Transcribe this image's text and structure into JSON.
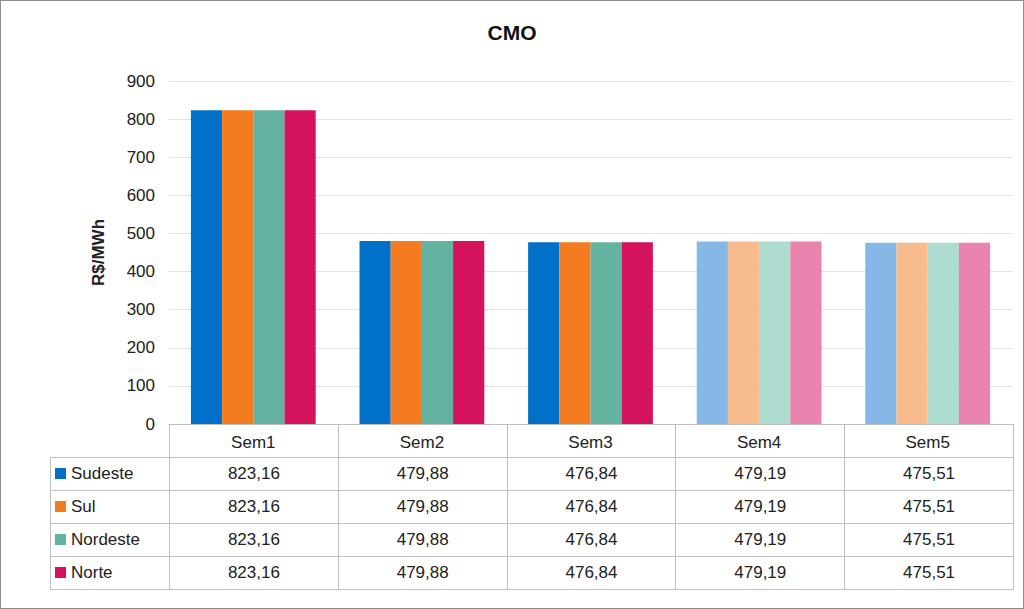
{
  "chart_data": {
    "type": "bar",
    "title": "CMO",
    "y_label": "R$/MWh",
    "categories": [
      "Sem1",
      "Sem2",
      "Sem3",
      "Sem4",
      "Sem5"
    ],
    "series": [
      {
        "name": "Sudeste",
        "color": "#0070C8",
        "colors": [
          "#0070C8",
          "#0070C8",
          "#0070C8",
          "#85B8E6",
          "#85B8E6"
        ],
        "values": [
          823.16,
          479.88,
          476.84,
          479.19,
          475.51
        ],
        "value_labels": [
          "823,16",
          "479,88",
          "476,84",
          "479,19",
          "475,51"
        ]
      },
      {
        "name": "Sul",
        "color": "#F47B20",
        "colors": [
          "#F47B20",
          "#F47B20",
          "#F47B20",
          "#F7BB8E",
          "#F7BB8E"
        ],
        "values": [
          823.16,
          479.88,
          476.84,
          479.19,
          475.51
        ],
        "value_labels": [
          "823,16",
          "479,88",
          "476,84",
          "479,19",
          "475,51"
        ]
      },
      {
        "name": "Nordeste",
        "color": "#64B2A0",
        "colors": [
          "#64B2A0",
          "#64B2A0",
          "#64B2A0",
          "#AEDCD0",
          "#AEDCD0"
        ],
        "values": [
          823.16,
          479.88,
          476.84,
          479.19,
          475.51
        ],
        "value_labels": [
          "823,16",
          "479,88",
          "476,84",
          "479,19",
          "475,51"
        ]
      },
      {
        "name": "Norte",
        "color": "#D5125C",
        "colors": [
          "#D5125C",
          "#D5125C",
          "#D5125C",
          "#E884AE",
          "#E884AE"
        ],
        "values": [
          823.16,
          479.88,
          476.84,
          479.19,
          475.51
        ],
        "value_labels": [
          "823,16",
          "479,88",
          "476,84",
          "479,19",
          "475,51"
        ]
      }
    ],
    "ylim": [
      0,
      900
    ],
    "yticks": [
      0,
      100,
      200,
      300,
      400,
      500,
      600,
      700,
      800,
      900
    ],
    "grid": true
  }
}
